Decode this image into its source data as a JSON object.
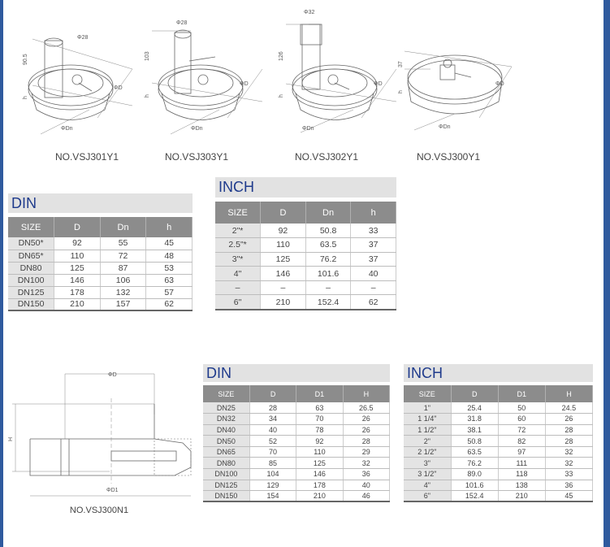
{
  "colors": {
    "title_blue": "#1f3b8c",
    "header_gray": "#8c8c8c",
    "title_bg": "#e2e2e2",
    "frame_blue": "#2f5a9e"
  },
  "figures": [
    {
      "caption": "NO.VSJ301Y1",
      "dims": [
        "90.5",
        "Φ28",
        "h",
        "ΦD",
        "ΦDn"
      ]
    },
    {
      "caption": "NO.VSJ303Y1",
      "dims": [
        "103",
        "Φ28",
        "h",
        "ΦD",
        "ΦDn"
      ]
    },
    {
      "caption": "NO.VSJ302Y1",
      "dims": [
        "126",
        "Φ32",
        "h",
        "ΦD",
        "ΦDn"
      ]
    },
    {
      "caption": "NO.VSJ300Y1",
      "dims": [
        "37",
        "h",
        "ΦD",
        "ΦDn"
      ]
    },
    {
      "caption": "NO.VSJ300N1",
      "dims": [
        "ΦD",
        "H",
        "ΦD1"
      ]
    }
  ],
  "tables": {
    "din1": {
      "title": "DIN",
      "headers": [
        "SIZE",
        "D",
        "Dn",
        "h"
      ],
      "rows": [
        [
          "DN50*",
          "92",
          "55",
          "45"
        ],
        [
          "DN65*",
          "110",
          "72",
          "48"
        ],
        [
          "DN80",
          "125",
          "87",
          "53"
        ],
        [
          "DN100",
          "146",
          "106",
          "63"
        ],
        [
          "DN125",
          "178",
          "132",
          "57"
        ],
        [
          "DN150",
          "210",
          "157",
          "62"
        ]
      ]
    },
    "inch1": {
      "title": "INCH",
      "headers": [
        "SIZE",
        "D",
        "Dn",
        "h"
      ],
      "rows": [
        [
          "2\"*",
          "92",
          "50.8",
          "33"
        ],
        [
          "2.5\"*",
          "110",
          "63.5",
          "37"
        ],
        [
          "3\"*",
          "125",
          "76.2",
          "37"
        ],
        [
          "4\"",
          "146",
          "101.6",
          "40"
        ],
        [
          "–",
          "–",
          "–",
          "–"
        ],
        [
          "6\"",
          "210",
          "152.4",
          "62"
        ]
      ]
    },
    "din2": {
      "title": "DIN",
      "headers": [
        "SIZE",
        "D",
        "D1",
        "H"
      ],
      "rows": [
        [
          "DN25",
          "28",
          "63",
          "26.5"
        ],
        [
          "DN32",
          "34",
          "70",
          "26"
        ],
        [
          "DN40",
          "40",
          "78",
          "26"
        ],
        [
          "DN50",
          "52",
          "92",
          "28"
        ],
        [
          "DN65",
          "70",
          "110",
          "29"
        ],
        [
          "DN80",
          "85",
          "125",
          "32"
        ],
        [
          "DN100",
          "104",
          "146",
          "36"
        ],
        [
          "DN125",
          "129",
          "178",
          "40"
        ],
        [
          "DN150",
          "154",
          "210",
          "46"
        ]
      ]
    },
    "inch2": {
      "title": "INCH",
      "headers": [
        "SIZE",
        "D",
        "D1",
        "H"
      ],
      "rows": [
        [
          "1\"",
          "25.4",
          "50",
          "24.5"
        ],
        [
          "1 1/4\"",
          "31.8",
          "60",
          "26"
        ],
        [
          "1 1/2\"",
          "38.1",
          "72",
          "28"
        ],
        [
          "2\"",
          "50.8",
          "82",
          "28"
        ],
        [
          "2 1/2\"",
          "63.5",
          "97",
          "32"
        ],
        [
          "3\"",
          "76.2",
          "111",
          "32"
        ],
        [
          "3 1/2\"",
          "89.0",
          "118",
          "33"
        ],
        [
          "4\"",
          "101.6",
          "138",
          "36"
        ],
        [
          "6\"",
          "152.4",
          "210",
          "45"
        ]
      ]
    }
  }
}
